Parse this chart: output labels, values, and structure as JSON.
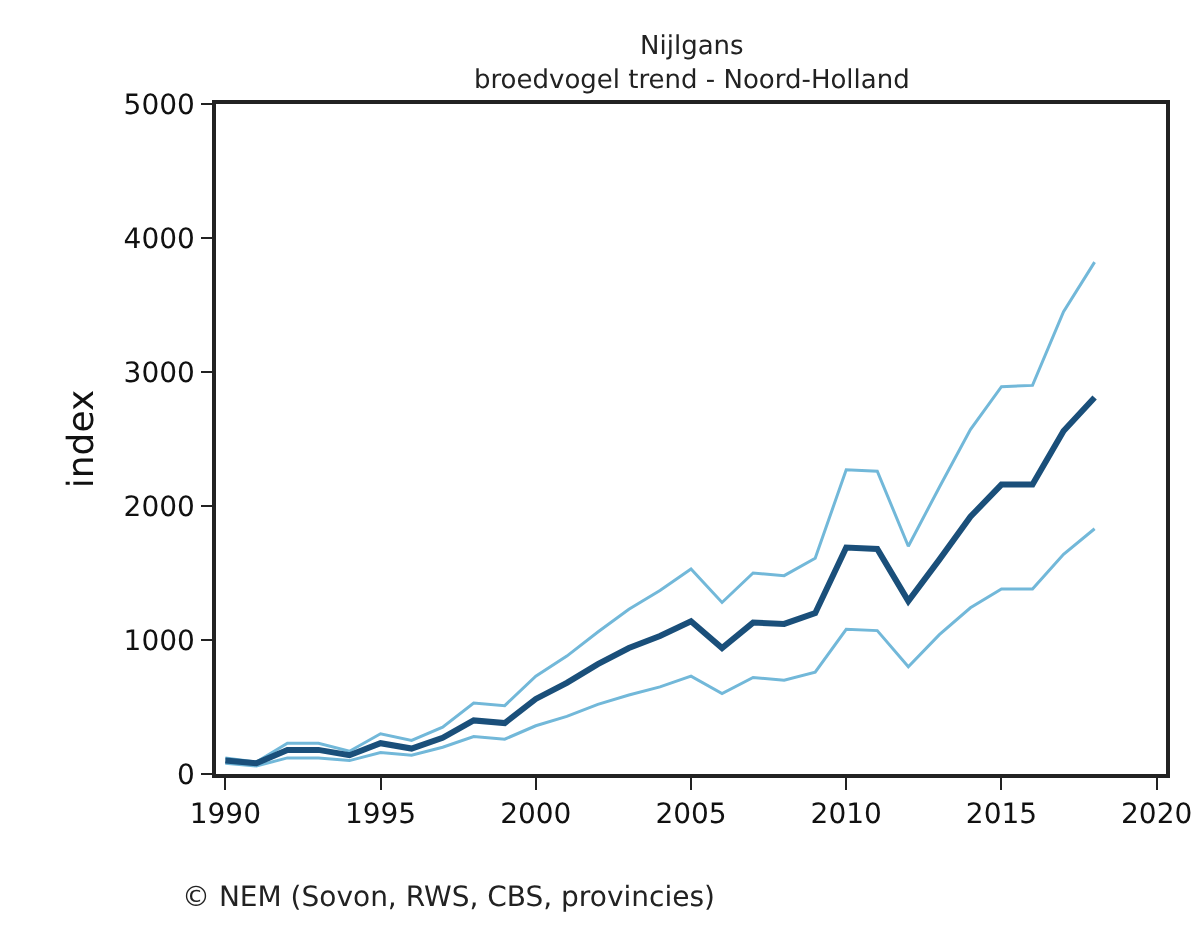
{
  "chart_data": {
    "type": "line",
    "title": "Nijlgans",
    "subtitle": "broedvogel trend - Noord-Holland",
    "ylabel": "index",
    "x": [
      1990,
      1991,
      1992,
      1993,
      1994,
      1995,
      1996,
      1997,
      1998,
      1999,
      2000,
      2001,
      2002,
      2003,
      2004,
      2005,
      2006,
      2007,
      2008,
      2009,
      2010,
      2011,
      2012,
      2013,
      2014,
      2015,
      2016,
      2017,
      2018
    ],
    "series": [
      {
        "color": "#72b8d9",
        "values": [
          80,
          60,
          120,
          120,
          100,
          160,
          140,
          200,
          280,
          260,
          360,
          430,
          520,
          590,
          650,
          730,
          600,
          720,
          700,
          760,
          1080,
          1070,
          800,
          1040,
          1240,
          1380,
          1380,
          1640,
          1830
        ]
      },
      {
        "color": "#72b8d9",
        "values": [
          120,
          90,
          230,
          230,
          170,
          300,
          250,
          350,
          530,
          510,
          730,
          880,
          1060,
          1230,
          1370,
          1530,
          1280,
          1500,
          1480,
          1610,
          2270,
          2260,
          1700,
          2140,
          2570,
          2890,
          2900,
          3450,
          3820
        ]
      },
      {
        "color": "#1a4f7a",
        "values": [
          100,
          80,
          180,
          180,
          140,
          230,
          190,
          270,
          400,
          380,
          560,
          680,
          820,
          940,
          1030,
          1140,
          940,
          1130,
          1120,
          1200,
          1690,
          1680,
          1290,
          1600,
          1920,
          2160,
          2160,
          2560,
          2810
        ]
      }
    ],
    "xlim": [
      1989.7,
      2020.3
    ],
    "xticks": [
      1990,
      1995,
      2000,
      2005,
      2010,
      2015,
      2020
    ],
    "ylim": [
      0,
      5000
    ],
    "yticks": [
      0,
      1000,
      2000,
      3000,
      4000,
      5000
    ],
    "grid": false,
    "marker": "none",
    "line_style": "solid",
    "annotations": [
      "© NEM (Sovon, RWS, CBS, provincies)"
    ]
  }
}
